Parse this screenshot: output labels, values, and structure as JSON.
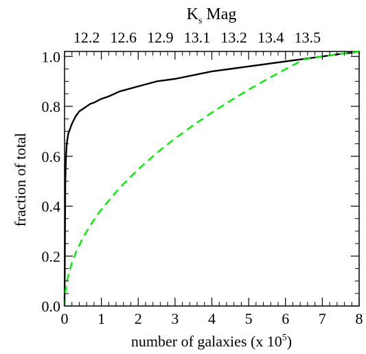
{
  "chart_data": {
    "type": "line",
    "title": "",
    "xlabel": "number of galaxies (x 10",
    "xlabel_sup": "5",
    "xlabel_end": ")",
    "ylabel": "fraction of total",
    "top_axis_label_main": "K",
    "top_axis_label_sub": "s",
    "top_axis_label_end": " Mag",
    "xlim": [
      0,
      8
    ],
    "ylim": [
      0,
      1.02
    ],
    "x_ticks": [
      0,
      1,
      2,
      3,
      4,
      5,
      6,
      7,
      8
    ],
    "x_tick_labels": [
      "0",
      "1",
      "2",
      "3",
      "4",
      "5",
      "6",
      "7",
      "8"
    ],
    "y_ticks": [
      0.0,
      0.2,
      0.4,
      0.6,
      0.8,
      1.0
    ],
    "y_tick_labels": [
      "0.0",
      "0.2",
      "0.4",
      "0.6",
      "0.8",
      "1.0"
    ],
    "top_ticks": [
      0.6,
      1.6,
      2.6,
      3.6,
      4.6,
      5.6,
      6.6
    ],
    "top_tick_labels": [
      "12.2",
      "12.6",
      "12.9",
      "13.1",
      "13.2",
      "13.4",
      "13.5"
    ],
    "grid": false,
    "legend": "none",
    "series": [
      {
        "color": "#000000",
        "style": "solid",
        "x": [
          0,
          0.02,
          0.04,
          0.06,
          0.1,
          0.15,
          0.2,
          0.3,
          0.4,
          0.5,
          0.6,
          0.7,
          0.8,
          1.0,
          1.2,
          1.5,
          2.0,
          2.5,
          3.0,
          3.5,
          4.0,
          4.5,
          5.0,
          5.5,
          6.0,
          6.5,
          7.0,
          7.5,
          7.8,
          8.0
        ],
        "y": [
          0.0,
          0.5,
          0.6,
          0.65,
          0.69,
          0.71,
          0.73,
          0.76,
          0.78,
          0.79,
          0.8,
          0.81,
          0.815,
          0.83,
          0.84,
          0.86,
          0.88,
          0.9,
          0.91,
          0.925,
          0.94,
          0.95,
          0.96,
          0.97,
          0.98,
          0.99,
          1.0,
          1.01,
          1.015,
          1.02
        ]
      },
      {
        "color": "#00ee00",
        "style": "dashed",
        "x": [
          0,
          0.02,
          0.05,
          0.1,
          0.2,
          0.3,
          0.5,
          0.75,
          1.0,
          1.5,
          2.0,
          2.5,
          3.0,
          3.5,
          4.0,
          4.5,
          5.0,
          5.5,
          6.0,
          6.5,
          7.0,
          7.5,
          8.0
        ],
        "y": [
          0.0,
          0.055,
          0.087,
          0.122,
          0.173,
          0.212,
          0.274,
          0.335,
          0.387,
          0.474,
          0.548,
          0.613,
          0.671,
          0.725,
          0.775,
          0.822,
          0.867,
          0.909,
          0.949,
          0.988,
          1.0,
          1.01,
          1.02
        ]
      }
    ]
  }
}
